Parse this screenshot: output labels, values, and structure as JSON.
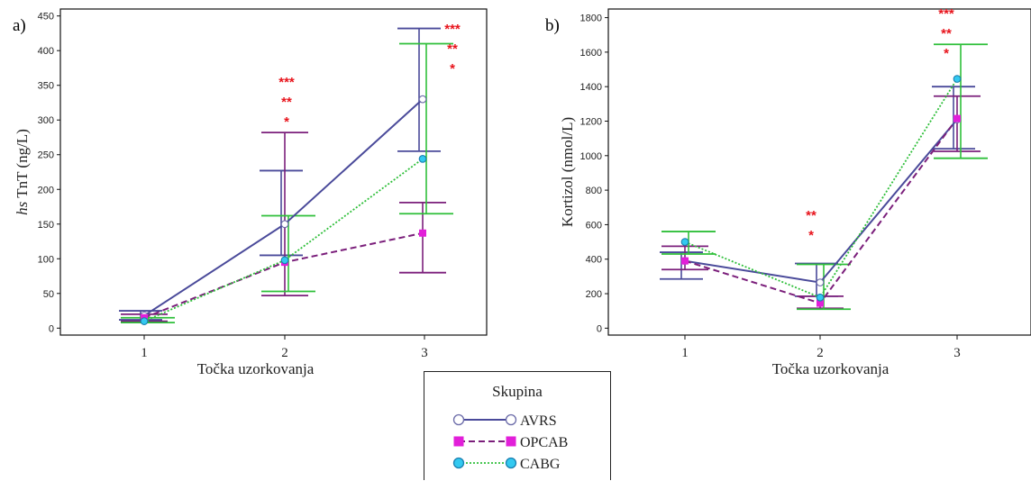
{
  "colors": {
    "AVRS": "#4a4a9a",
    "OPCAB": "#7b1f7b",
    "CABG": "#2fbf3a",
    "OPCAB_marker": "#e21fd9",
    "CABG_marker": "#33c9f0",
    "stars": "#e8141c"
  },
  "legend": {
    "title": "Skupina",
    "items": [
      "AVRS",
      "OPCAB",
      "CABG"
    ]
  },
  "chart_data": [
    {
      "type": "line",
      "panel_label": "a)",
      "xlabel": "Točka uzorkovanja",
      "ylabel_prefix": "hs",
      "ylabel_rest": " TnT (ng/L)",
      "x": [
        1,
        2,
        3
      ],
      "ylim": [
        -10,
        460
      ],
      "yticks": [
        0,
        50,
        100,
        150,
        200,
        250,
        300,
        350,
        400,
        450
      ],
      "series": [
        {
          "name": "AVRS",
          "values": [
            18,
            150,
            330
          ],
          "err_low": [
            12,
            105,
            255
          ],
          "err_high": [
            25,
            227,
            432
          ]
        },
        {
          "name": "OPCAB",
          "values": [
            15,
            95,
            137
          ],
          "err_low": [
            10,
            47,
            80
          ],
          "err_high": [
            20,
            282,
            181
          ]
        },
        {
          "name": "CABG",
          "values": [
            10,
            98,
            244
          ],
          "err_low": [
            8,
            53,
            165
          ],
          "err_high": [
            15,
            162,
            410
          ]
        }
      ],
      "annotations": [
        {
          "x": 2,
          "lines": [
            "***",
            "**",
            "*"
          ]
        },
        {
          "x": 3,
          "lines": [
            "***",
            "**",
            "*"
          ]
        }
      ]
    },
    {
      "type": "line",
      "panel_label": "b)",
      "xlabel": "Točka uzorkovanja",
      "ylabel": "Kortizol  (nmol/L)",
      "x": [
        1,
        2,
        3
      ],
      "ylim": [
        -40,
        1850
      ],
      "yticks": [
        0,
        200,
        400,
        600,
        800,
        1000,
        1200,
        1400,
        1600,
        1800
      ],
      "series": [
        {
          "name": "AVRS",
          "values": [
            390,
            265,
            1210
          ],
          "err_low": [
            285,
            185,
            1040
          ],
          "err_high": [
            440,
            375,
            1400
          ]
        },
        {
          "name": "OPCAB",
          "values": [
            390,
            145,
            1215
          ],
          "err_low": [
            340,
            115,
            1025
          ],
          "err_high": [
            475,
            185,
            1345
          ]
        },
        {
          "name": "CABG",
          "values": [
            500,
            178,
            1445
          ],
          "err_low": [
            430,
            110,
            985
          ],
          "err_high": [
            560,
            370,
            1645
          ]
        }
      ],
      "annotations": [
        {
          "x": 2,
          "lines": [
            "**",
            "*"
          ]
        },
        {
          "x": 3,
          "lines": [
            "***",
            "**",
            "*"
          ]
        }
      ]
    }
  ]
}
